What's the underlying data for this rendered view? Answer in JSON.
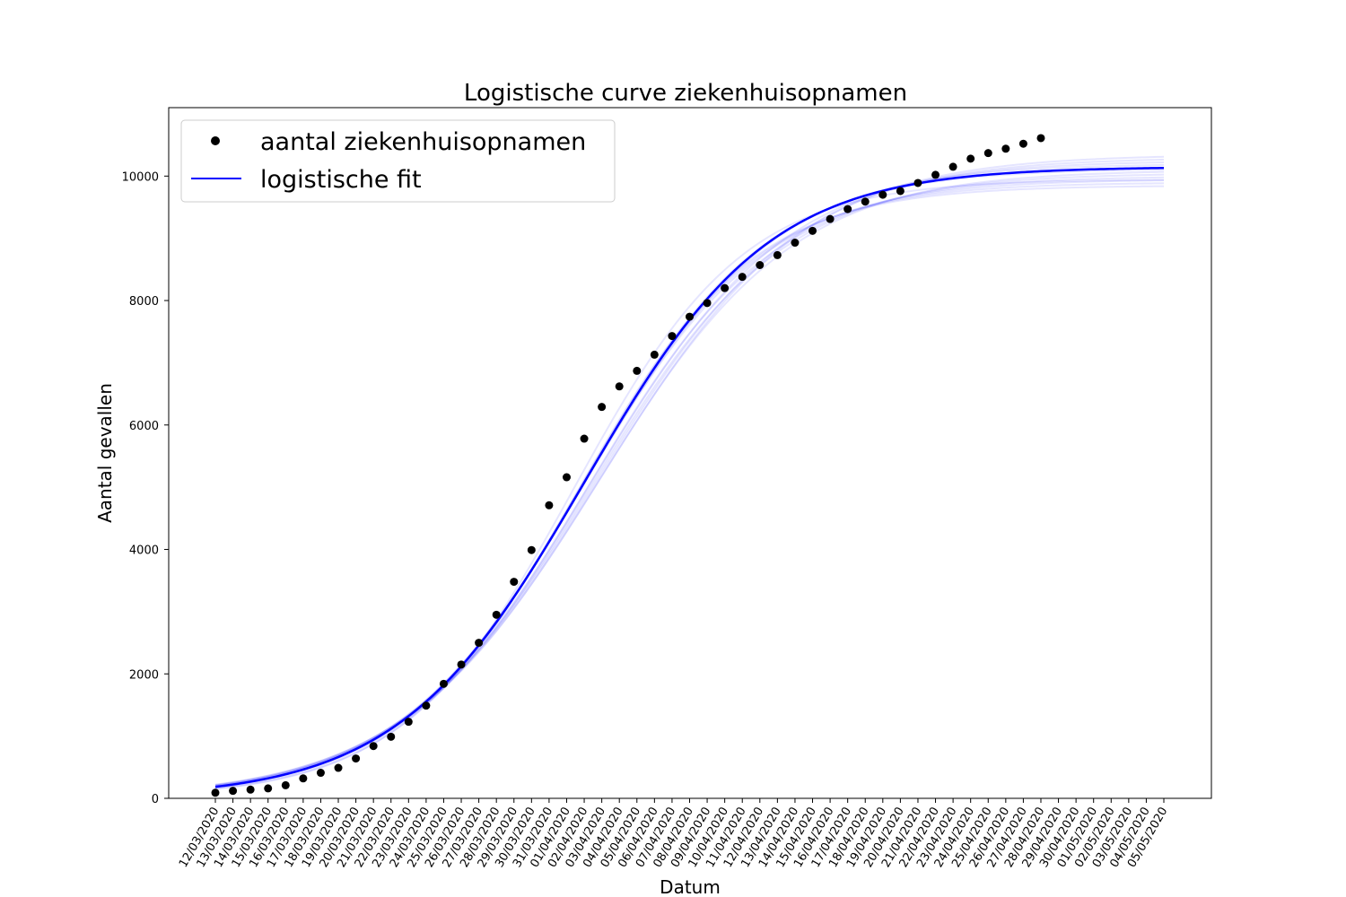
{
  "chart_data": {
    "type": "line",
    "title": "Logistische curve ziekenhuisopnamen",
    "xlabel": "Datum",
    "ylabel": "Aantal gevallen",
    "xlim_dates": [
      "12/03/2020",
      "05/05/2020"
    ],
    "ylim": [
      0,
      11100
    ],
    "yticks": [
      0,
      2000,
      4000,
      6000,
      8000,
      10000
    ],
    "xtick_labels": [
      "12/03/2020",
      "13/03/2020",
      "14/03/2020",
      "15/03/2020",
      "16/03/2020",
      "17/03/2020",
      "18/03/2020",
      "19/03/2020",
      "20/03/2020",
      "21/03/2020",
      "22/03/2020",
      "23/03/2020",
      "24/03/2020",
      "25/03/2020",
      "26/03/2020",
      "27/03/2020",
      "28/03/2020",
      "29/03/2020",
      "30/03/2020",
      "31/03/2020",
      "01/04/2020",
      "02/04/2020",
      "03/04/2020",
      "04/04/2020",
      "05/04/2020",
      "06/04/2020",
      "07/04/2020",
      "08/04/2020",
      "09/04/2020",
      "10/04/2020",
      "11/04/2020",
      "12/04/2020",
      "13/04/2020",
      "14/04/2020",
      "15/04/2020",
      "16/04/2020",
      "17/04/2020",
      "18/04/2020",
      "19/04/2020",
      "20/04/2020",
      "21/04/2020",
      "22/04/2020",
      "23/04/2020",
      "24/04/2020",
      "25/04/2020",
      "26/04/2020",
      "27/04/2020",
      "28/04/2020",
      "29/04/2020",
      "30/04/2020",
      "01/05/2020",
      "02/05/2020",
      "03/05/2020",
      "04/05/2020",
      "05/05/2020"
    ],
    "grid": false,
    "legend_placement": "top-left",
    "series": [
      {
        "name": "aantal ziekenhuisopnamen",
        "kind": "scatter",
        "color": "#000000",
        "x": [
          "12/03/2020",
          "13/03/2020",
          "14/03/2020",
          "15/03/2020",
          "16/03/2020",
          "17/03/2020",
          "18/03/2020",
          "19/03/2020",
          "20/03/2020",
          "21/03/2020",
          "22/03/2020",
          "23/03/2020",
          "24/03/2020",
          "25/03/2020",
          "26/03/2020",
          "27/03/2020",
          "28/03/2020",
          "29/03/2020",
          "30/03/2020",
          "31/03/2020",
          "01/04/2020",
          "02/04/2020",
          "03/04/2020",
          "04/04/2020",
          "05/04/2020",
          "06/04/2020",
          "07/04/2020",
          "08/04/2020",
          "09/04/2020",
          "10/04/2020",
          "11/04/2020",
          "12/04/2020",
          "13/04/2020",
          "14/04/2020",
          "15/04/2020",
          "16/04/2020",
          "17/04/2020",
          "18/04/2020",
          "19/04/2020",
          "20/04/2020",
          "21/04/2020",
          "22/04/2020",
          "23/04/2020",
          "24/04/2020",
          "25/04/2020",
          "26/04/2020",
          "27/04/2020",
          "28/04/2020"
        ],
        "y": [
          90,
          120,
          140,
          160,
          210,
          320,
          410,
          490,
          640,
          840,
          990,
          1230,
          1490,
          1840,
          2150,
          2500,
          2950,
          3480,
          3990,
          4710,
          5160,
          5780,
          6290,
          6620,
          6870,
          7130,
          7430,
          7740,
          7960,
          8200,
          8380,
          8570,
          8730,
          8930,
          9120,
          9310,
          9470,
          9590,
          9700,
          9760,
          9890,
          10020,
          10150,
          10280,
          10370,
          10440,
          10520,
          10610
        ]
      },
      {
        "name": "logistische fit",
        "kind": "line",
        "color": "#0000ff",
        "model": "logistic",
        "K": 10150,
        "midpoint": "02/04/2020",
        "rate": 0.19,
        "x_range": [
          "12/03/2020",
          "05/05/2020"
        ]
      }
    ],
    "uncertainty_band": {
      "color": "#0000ff",
      "opacity": 0.1,
      "variants": [
        {
          "K": 9850,
          "rate": 0.2,
          "midpoint_shift": -0.4
        },
        {
          "K": 9900,
          "rate": 0.195,
          "midpoint_shift": -0.3
        },
        {
          "K": 9950,
          "rate": 0.19,
          "midpoint_shift": -0.2
        },
        {
          "K": 10000,
          "rate": 0.187,
          "midpoint_shift": 0.2
        },
        {
          "K": 10050,
          "rate": 0.182,
          "midpoint_shift": 0.4
        },
        {
          "K": 10100,
          "rate": 0.178,
          "midpoint_shift": 0.7
        },
        {
          "K": 10200,
          "rate": 0.186,
          "midpoint_shift": 0.1
        },
        {
          "K": 10250,
          "rate": 0.18,
          "midpoint_shift": 0.5
        },
        {
          "K": 10300,
          "rate": 0.176,
          "midpoint_shift": 0.8
        },
        {
          "K": 10350,
          "rate": 0.174,
          "midpoint_shift": 1.0
        },
        {
          "K": 9950,
          "rate": 0.205,
          "midpoint_shift": -0.6
        },
        {
          "K": 10120,
          "rate": 0.192,
          "midpoint_shift": -0.1
        }
      ]
    }
  }
}
